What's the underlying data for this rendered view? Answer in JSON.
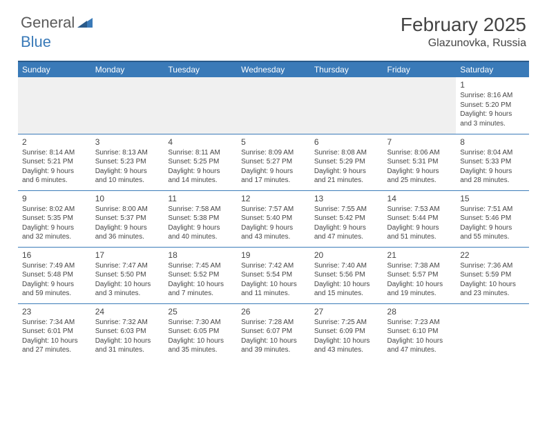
{
  "logo": {
    "general": "General",
    "blue": "Blue"
  },
  "title": "February 2025",
  "location": "Glazunovka, Russia",
  "colors": {
    "header_bg": "#3a7ab8",
    "header_border": "#2a5a8a",
    "cell_border": "#3a7ab8",
    "text": "#444444",
    "empty_bg": "#f0f0f0"
  },
  "weekdays": [
    "Sunday",
    "Monday",
    "Tuesday",
    "Wednesday",
    "Thursday",
    "Friday",
    "Saturday"
  ],
  "weeks": [
    [
      null,
      null,
      null,
      null,
      null,
      null,
      {
        "n": "1",
        "sr": "Sunrise: 8:16 AM",
        "ss": "Sunset: 5:20 PM",
        "dl1": "Daylight: 9 hours",
        "dl2": "and 3 minutes."
      }
    ],
    [
      {
        "n": "2",
        "sr": "Sunrise: 8:14 AM",
        "ss": "Sunset: 5:21 PM",
        "dl1": "Daylight: 9 hours",
        "dl2": "and 6 minutes."
      },
      {
        "n": "3",
        "sr": "Sunrise: 8:13 AM",
        "ss": "Sunset: 5:23 PM",
        "dl1": "Daylight: 9 hours",
        "dl2": "and 10 minutes."
      },
      {
        "n": "4",
        "sr": "Sunrise: 8:11 AM",
        "ss": "Sunset: 5:25 PM",
        "dl1": "Daylight: 9 hours",
        "dl2": "and 14 minutes."
      },
      {
        "n": "5",
        "sr": "Sunrise: 8:09 AM",
        "ss": "Sunset: 5:27 PM",
        "dl1": "Daylight: 9 hours",
        "dl2": "and 17 minutes."
      },
      {
        "n": "6",
        "sr": "Sunrise: 8:08 AM",
        "ss": "Sunset: 5:29 PM",
        "dl1": "Daylight: 9 hours",
        "dl2": "and 21 minutes."
      },
      {
        "n": "7",
        "sr": "Sunrise: 8:06 AM",
        "ss": "Sunset: 5:31 PM",
        "dl1": "Daylight: 9 hours",
        "dl2": "and 25 minutes."
      },
      {
        "n": "8",
        "sr": "Sunrise: 8:04 AM",
        "ss": "Sunset: 5:33 PM",
        "dl1": "Daylight: 9 hours",
        "dl2": "and 28 minutes."
      }
    ],
    [
      {
        "n": "9",
        "sr": "Sunrise: 8:02 AM",
        "ss": "Sunset: 5:35 PM",
        "dl1": "Daylight: 9 hours",
        "dl2": "and 32 minutes."
      },
      {
        "n": "10",
        "sr": "Sunrise: 8:00 AM",
        "ss": "Sunset: 5:37 PM",
        "dl1": "Daylight: 9 hours",
        "dl2": "and 36 minutes."
      },
      {
        "n": "11",
        "sr": "Sunrise: 7:58 AM",
        "ss": "Sunset: 5:38 PM",
        "dl1": "Daylight: 9 hours",
        "dl2": "and 40 minutes."
      },
      {
        "n": "12",
        "sr": "Sunrise: 7:57 AM",
        "ss": "Sunset: 5:40 PM",
        "dl1": "Daylight: 9 hours",
        "dl2": "and 43 minutes."
      },
      {
        "n": "13",
        "sr": "Sunrise: 7:55 AM",
        "ss": "Sunset: 5:42 PM",
        "dl1": "Daylight: 9 hours",
        "dl2": "and 47 minutes."
      },
      {
        "n": "14",
        "sr": "Sunrise: 7:53 AM",
        "ss": "Sunset: 5:44 PM",
        "dl1": "Daylight: 9 hours",
        "dl2": "and 51 minutes."
      },
      {
        "n": "15",
        "sr": "Sunrise: 7:51 AM",
        "ss": "Sunset: 5:46 PM",
        "dl1": "Daylight: 9 hours",
        "dl2": "and 55 minutes."
      }
    ],
    [
      {
        "n": "16",
        "sr": "Sunrise: 7:49 AM",
        "ss": "Sunset: 5:48 PM",
        "dl1": "Daylight: 9 hours",
        "dl2": "and 59 minutes."
      },
      {
        "n": "17",
        "sr": "Sunrise: 7:47 AM",
        "ss": "Sunset: 5:50 PM",
        "dl1": "Daylight: 10 hours",
        "dl2": "and 3 minutes."
      },
      {
        "n": "18",
        "sr": "Sunrise: 7:45 AM",
        "ss": "Sunset: 5:52 PM",
        "dl1": "Daylight: 10 hours",
        "dl2": "and 7 minutes."
      },
      {
        "n": "19",
        "sr": "Sunrise: 7:42 AM",
        "ss": "Sunset: 5:54 PM",
        "dl1": "Daylight: 10 hours",
        "dl2": "and 11 minutes."
      },
      {
        "n": "20",
        "sr": "Sunrise: 7:40 AM",
        "ss": "Sunset: 5:56 PM",
        "dl1": "Daylight: 10 hours",
        "dl2": "and 15 minutes."
      },
      {
        "n": "21",
        "sr": "Sunrise: 7:38 AM",
        "ss": "Sunset: 5:57 PM",
        "dl1": "Daylight: 10 hours",
        "dl2": "and 19 minutes."
      },
      {
        "n": "22",
        "sr": "Sunrise: 7:36 AM",
        "ss": "Sunset: 5:59 PM",
        "dl1": "Daylight: 10 hours",
        "dl2": "and 23 minutes."
      }
    ],
    [
      {
        "n": "23",
        "sr": "Sunrise: 7:34 AM",
        "ss": "Sunset: 6:01 PM",
        "dl1": "Daylight: 10 hours",
        "dl2": "and 27 minutes."
      },
      {
        "n": "24",
        "sr": "Sunrise: 7:32 AM",
        "ss": "Sunset: 6:03 PM",
        "dl1": "Daylight: 10 hours",
        "dl2": "and 31 minutes."
      },
      {
        "n": "25",
        "sr": "Sunrise: 7:30 AM",
        "ss": "Sunset: 6:05 PM",
        "dl1": "Daylight: 10 hours",
        "dl2": "and 35 minutes."
      },
      {
        "n": "26",
        "sr": "Sunrise: 7:28 AM",
        "ss": "Sunset: 6:07 PM",
        "dl1": "Daylight: 10 hours",
        "dl2": "and 39 minutes."
      },
      {
        "n": "27",
        "sr": "Sunrise: 7:25 AM",
        "ss": "Sunset: 6:09 PM",
        "dl1": "Daylight: 10 hours",
        "dl2": "and 43 minutes."
      },
      {
        "n": "28",
        "sr": "Sunrise: 7:23 AM",
        "ss": "Sunset: 6:10 PM",
        "dl1": "Daylight: 10 hours",
        "dl2": "and 47 minutes."
      },
      null
    ]
  ]
}
